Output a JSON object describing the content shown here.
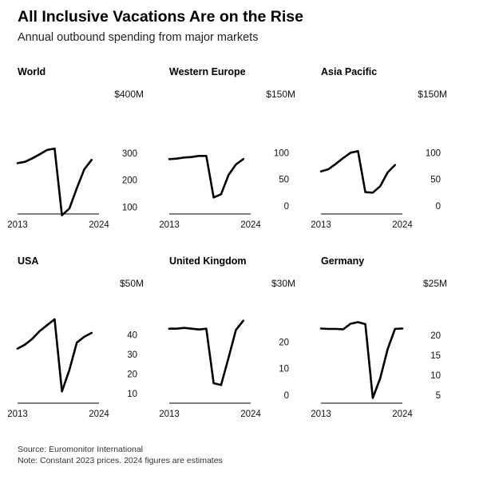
{
  "header": {
    "title": "All Inclusive Vacations Are on the Rise",
    "subtitle": "Annual outbound spending from major markets"
  },
  "footer": {
    "source": "Source: Euromonitor International",
    "note": "Note: Constant 2023 prices. 2024 figures are estimates"
  },
  "chart_data": [
    {
      "type": "line",
      "title": "World",
      "unit_label": "$400M",
      "x": [
        2013,
        2014,
        2015,
        2016,
        2017,
        2018,
        2019,
        2020,
        2021,
        2022,
        2023,
        2024
      ],
      "values": [
        263,
        268,
        281,
        296,
        312,
        317,
        70,
        95,
        170,
        240,
        275,
        null
      ],
      "yticks": [
        100,
        200,
        300
      ],
      "ytick_labels": [
        "100",
        "200",
        "300"
      ],
      "ylim": [
        75,
        400
      ],
      "xticks": [
        "2013",
        "2024"
      ]
    },
    {
      "type": "line",
      "title": "Western Europe",
      "unit_label": "$150M",
      "x": [
        2013,
        2014,
        2015,
        2016,
        2017,
        2018,
        2019,
        2020,
        2021,
        2022,
        2023,
        2024
      ],
      "values": [
        88,
        89,
        91,
        92,
        94,
        94,
        16,
        22,
        58,
        78,
        88,
        null
      ],
      "yticks": [
        0,
        50,
        100
      ],
      "ytick_labels": [
        "0",
        "50",
        "100"
      ],
      "ylim": [
        -15,
        150
      ],
      "xticks": [
        "2013",
        "2024"
      ]
    },
    {
      "type": "line",
      "title": "Asia Pacific",
      "unit_label": "$150M",
      "x": [
        2013,
        2014,
        2015,
        2016,
        2017,
        2018,
        2019,
        2020,
        2021,
        2022,
        2023,
        2024
      ],
      "values": [
        65,
        69,
        79,
        90,
        100,
        103,
        26,
        25,
        37,
        63,
        77,
        null
      ],
      "yticks": [
        0,
        50,
        100
      ],
      "ytick_labels": [
        "0",
        "50",
        "100"
      ],
      "ylim": [
        -15,
        150
      ],
      "xticks": [
        "2013",
        "2024"
      ]
    },
    {
      "type": "line",
      "title": "USA",
      "unit_label": "$50M",
      "x": [
        2013,
        2014,
        2015,
        2016,
        2017,
        2018,
        2019,
        2020,
        2021,
        2022,
        2023,
        2024
      ],
      "values": [
        33,
        35,
        38,
        42,
        45,
        48,
        11,
        22,
        36,
        39,
        41,
        null
      ],
      "yticks": [
        10,
        20,
        30,
        40
      ],
      "ytick_labels": [
        "10",
        "20",
        "30",
        "40"
      ],
      "ylim": [
        5,
        50
      ],
      "xticks": [
        "2013",
        "2024"
      ]
    },
    {
      "type": "line",
      "title": "United Kingdom",
      "unit_label": "$30M",
      "x": [
        2013,
        2014,
        2015,
        2016,
        2017,
        2018,
        2019,
        2020,
        2021,
        2022,
        2023,
        2024
      ],
      "values": [
        25,
        25,
        25.3,
        25,
        24.7,
        25,
        4.5,
        3.8,
        14,
        24.5,
        28,
        null
      ],
      "yticks": [
        0,
        10,
        20
      ],
      "ytick_labels": [
        "0",
        "10",
        "20"
      ],
      "ylim": [
        -3,
        30
      ],
      "xticks": [
        "2013",
        "2024"
      ]
    },
    {
      "type": "line",
      "title": "Germany",
      "unit_label": "$25M",
      "x": [
        2013,
        2014,
        2015,
        2016,
        2017,
        2018,
        2019,
        2020,
        2021,
        2022,
        2023,
        2024
      ],
      "values": [
        21.7,
        21.6,
        21.6,
        21.5,
        22.9,
        23.3,
        22.8,
        4.3,
        9.2,
        16.5,
        21.6,
        21.7
      ],
      "yticks": [
        5,
        10,
        15,
        20
      ],
      "ytick_labels": [
        "5",
        "10",
        "15",
        "20"
      ],
      "ylim": [
        3,
        25
      ],
      "xticks": [
        "2013",
        "2024"
      ]
    }
  ]
}
